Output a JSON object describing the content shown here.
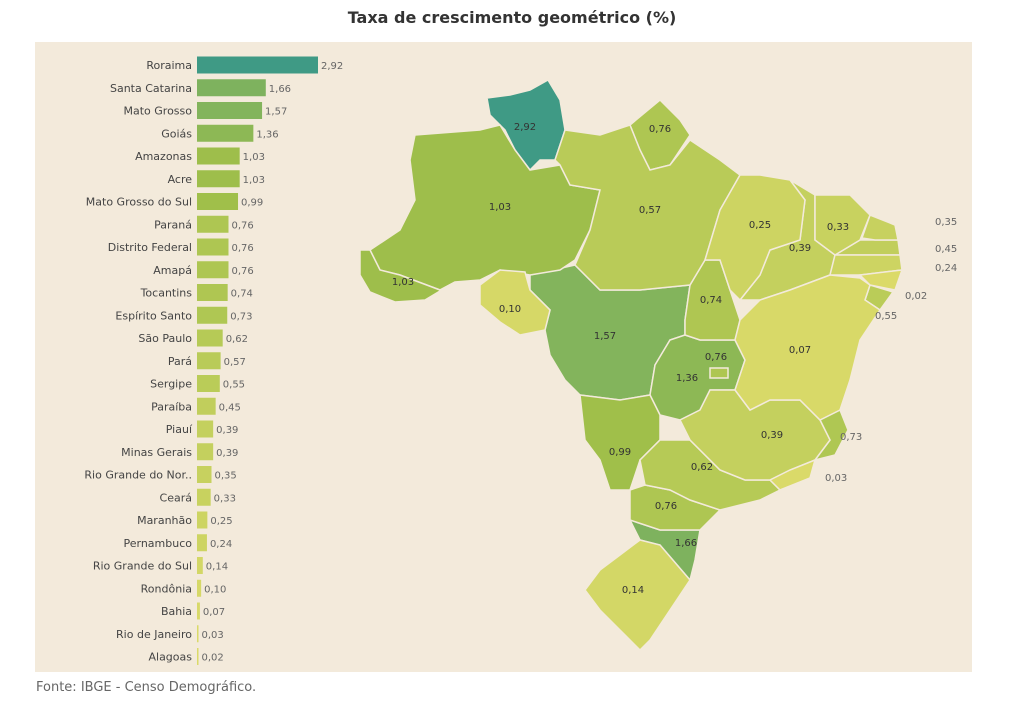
{
  "chart_data": {
    "type": "bar",
    "title": "Taxa de crescimento geométrico (%)",
    "orientation": "horizontal",
    "categories": [
      "Roraima",
      "Santa Catarina",
      "Mato Grosso",
      "Goiás",
      "Amazonas",
      "Acre",
      "Mato Grosso do Sul",
      "Paraná",
      "Distrito Federal",
      "Amapá",
      "Tocantins",
      "Espírito Santo",
      "São Paulo",
      "Pará",
      "Sergipe",
      "Paraíba",
      "Piauí",
      "Minas Gerais",
      "Rio Grande do Nor..",
      "Ceará",
      "Maranhão",
      "Pernambuco",
      "Rio Grande do Sul",
      "Rondônia",
      "Bahia",
      "Rio de Janeiro",
      "Alagoas"
    ],
    "values": [
      2.92,
      1.66,
      1.57,
      1.36,
      1.03,
      1.03,
      0.99,
      0.76,
      0.76,
      0.76,
      0.74,
      0.73,
      0.62,
      0.57,
      0.55,
      0.45,
      0.39,
      0.39,
      0.35,
      0.33,
      0.25,
      0.24,
      0.14,
      0.1,
      0.07,
      0.03,
      0.02
    ],
    "value_labels": [
      "2,92",
      "1,66",
      "1,57",
      "1,36",
      "1,03",
      "1,03",
      "0,99",
      "0,76",
      "0,76",
      "0,76",
      "0,74",
      "0,73",
      "0,62",
      "0,57",
      "0,55",
      "0,45",
      "0,39",
      "0,39",
      "0,35",
      "0,33",
      "0,25",
      "0,24",
      "0,14",
      "0,10",
      "0,07",
      "0,03",
      "0,02"
    ],
    "color_scale": {
      "low": "#dcdb6a",
      "mid": "#9fbf4a",
      "high": "#3f9a85"
    },
    "map": {
      "type": "choropleth",
      "note_labels_same_as_bars": true
    }
  },
  "footer": "Fonte: IBGE - Censo Demográfico."
}
